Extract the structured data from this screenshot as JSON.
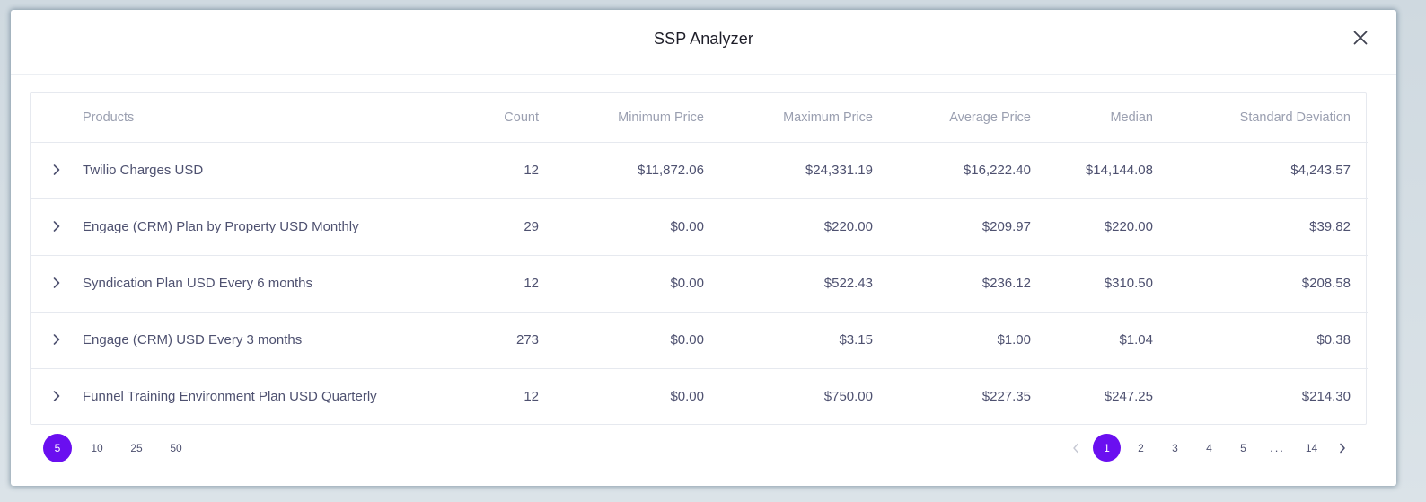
{
  "modal": {
    "title": "SSP Analyzer"
  },
  "table": {
    "headers": {
      "products": "Products",
      "count": "Count",
      "min": "Minimum Price",
      "max": "Maximum Price",
      "avg": "Average Price",
      "median": "Median",
      "stddev": "Standard Deviation"
    },
    "rows": [
      {
        "product": "Twilio Charges USD",
        "count": "12",
        "min": "$11,872.06",
        "max": "$24,331.19",
        "avg": "$16,222.40",
        "median": "$14,144.08",
        "stddev": "$4,243.57"
      },
      {
        "product": "Engage (CRM) Plan by Property USD Monthly",
        "count": "29",
        "min": "$0.00",
        "max": "$220.00",
        "avg": "$209.97",
        "median": "$220.00",
        "stddev": "$39.82"
      },
      {
        "product": "Syndication Plan USD Every 6 months",
        "count": "12",
        "min": "$0.00",
        "max": "$522.43",
        "avg": "$236.12",
        "median": "$310.50",
        "stddev": "$208.58"
      },
      {
        "product": "Engage (CRM) USD Every 3 months",
        "count": "273",
        "min": "$0.00",
        "max": "$3.15",
        "avg": "$1.00",
        "median": "$1.04",
        "stddev": "$0.38"
      },
      {
        "product": "Funnel Training Environment Plan USD Quarterly",
        "count": "12",
        "min": "$0.00",
        "max": "$750.00",
        "avg": "$227.35",
        "median": "$247.25",
        "stddev": "$214.30"
      }
    ]
  },
  "page_size": {
    "options": [
      "5",
      "10",
      "25",
      "50"
    ],
    "selected": "5"
  },
  "pagination": {
    "pages": [
      "1",
      "2",
      "3",
      "4",
      "5"
    ],
    "ellipsis": "...",
    "last": "14",
    "current": "1"
  },
  "colors": {
    "accent": "#6a0ff0",
    "text": "#4e5170",
    "header_text": "#9a9fb0",
    "border": "#e6e9ef"
  },
  "icons": {
    "close": "close-icon",
    "expand": "chevron-right-icon",
    "prev": "chevron-left-icon",
    "next": "chevron-right-icon"
  }
}
